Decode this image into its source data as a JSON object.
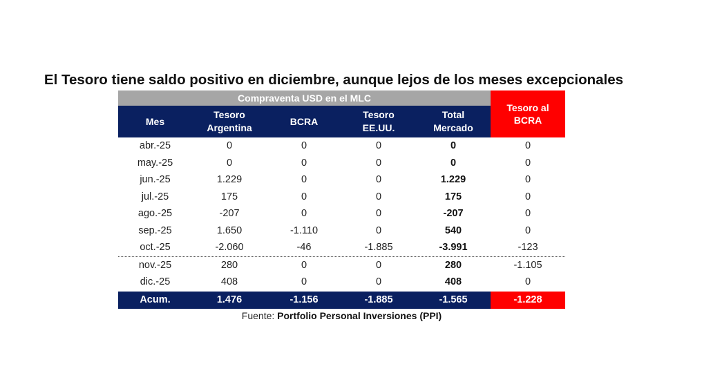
{
  "title": "El Tesoro tiene saldo positivo en diciembre, aunque lejos de los meses excepcionales",
  "table": {
    "group_header": "Compraventa USD en el MLC",
    "side_header": "Tesoro al BCRA",
    "columns": [
      "Mes",
      "Tesoro Argentina",
      "BCRA",
      "Tesoro EE.UU.",
      "Total Mercado",
      "Tesoro al BCRA"
    ],
    "rows": [
      [
        "abr.-25",
        "0",
        "0",
        "0",
        "0",
        "0"
      ],
      [
        "may.-25",
        "0",
        "0",
        "0",
        "0",
        "0"
      ],
      [
        "jun.-25",
        "1.229",
        "0",
        "0",
        "1.229",
        "0"
      ],
      [
        "jul.-25",
        "175",
        "0",
        "0",
        "175",
        "0"
      ],
      [
        "ago.-25",
        "-207",
        "0",
        "0",
        "-207",
        "0"
      ],
      [
        "sep.-25",
        "1.650",
        "-1.110",
        "0",
        "540",
        "0"
      ],
      [
        "oct.-25",
        "-2.060",
        "-46",
        "-1.885",
        "-3.991",
        "-123"
      ],
      [
        "nov.-25",
        "280",
        "0",
        "0",
        "280",
        "-1.105"
      ],
      [
        "dic.-25",
        "408",
        "0",
        "0",
        "408",
        "0"
      ]
    ],
    "total": [
      "Acum.",
      "1.476",
      "-1.156",
      "-1.885",
      "-1.565",
      "-1.228"
    ]
  },
  "source": {
    "label": "Fuente:",
    "name": "Portfolio Personal Inversiones (PPI)"
  },
  "colors": {
    "header_navy": "#0a2060",
    "accent_red": "#ff0000",
    "group_gray": "#a6a6a6"
  }
}
